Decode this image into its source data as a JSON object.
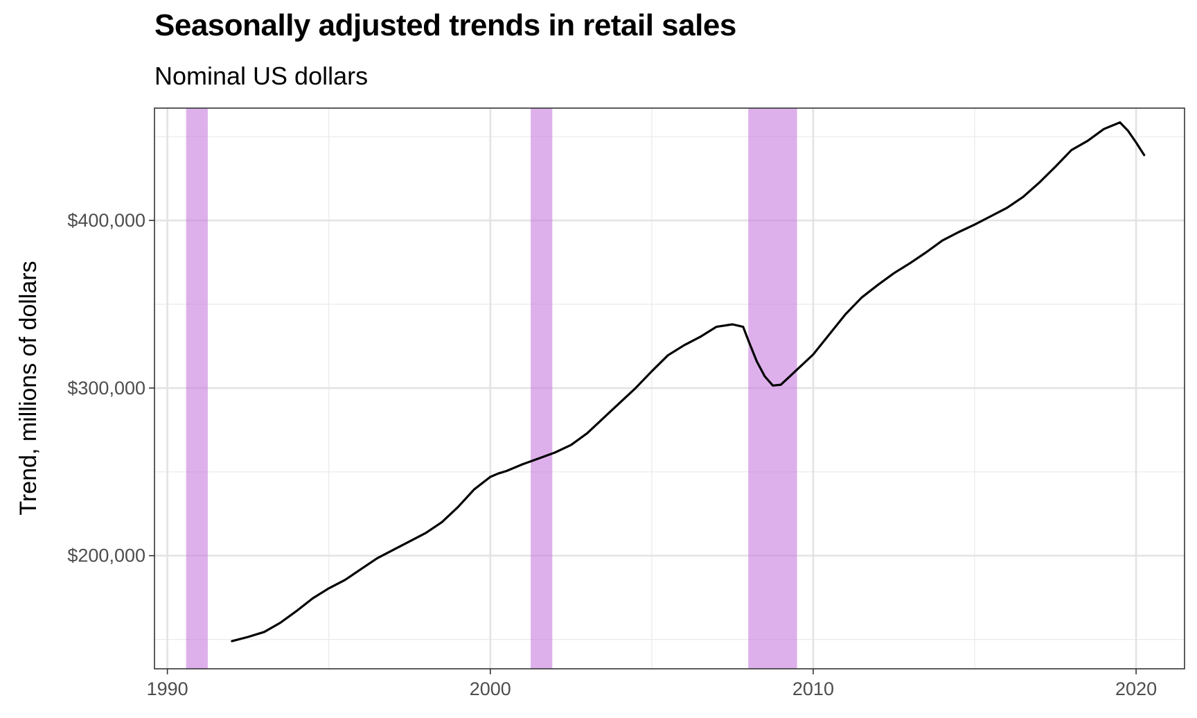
{
  "chart_data": {
    "type": "line",
    "title": "Seasonally adjusted trends in retail sales",
    "subtitle": "Nominal US dollars",
    "xlabel": "",
    "ylabel": "Trend, millions of dollars",
    "xlim": [
      1989.6,
      2021.5
    ],
    "ylim": [
      132500,
      467000
    ],
    "x_ticks": [
      1990,
      2000,
      2010,
      2020
    ],
    "x_tick_labels": [
      "1990",
      "2000",
      "2010",
      "2020"
    ],
    "x_minor_ticks": [
      1995,
      2005,
      2015
    ],
    "y_ticks": [
      200000,
      300000,
      400000
    ],
    "y_tick_labels": [
      "$200,000",
      "$300,000",
      "$400,000"
    ],
    "y_minor_ticks": [
      150000,
      250000,
      350000,
      450000
    ],
    "grid": true,
    "line_color": "#000000",
    "recession_color": "#c77cde",
    "recessions": [
      {
        "start": 1990.58,
        "end": 1991.25
      },
      {
        "start": 2001.25,
        "end": 2001.92
      },
      {
        "start": 2007.99,
        "end": 2009.5
      }
    ],
    "series": [
      {
        "x": [
          1992.0,
          1992.5,
          1993.0,
          1993.5,
          1994.0,
          1994.5,
          1995.0,
          1995.5,
          1996.0,
          1996.5,
          1997.0,
          1997.5,
          1998.0,
          1998.5,
          1999.0,
          1999.5,
          2000.0,
          2000.25,
          2000.5,
          2001.0,
          2001.5,
          2002.0,
          2002.5,
          2003.0,
          2003.5,
          2004.0,
          2004.5,
          2005.0,
          2005.5,
          2006.0,
          2006.5,
          2007.0,
          2007.5,
          2007.83,
          2008.0,
          2008.25,
          2008.5,
          2008.75,
          2009.0,
          2009.25,
          2009.5,
          2010.0,
          2010.5,
          2011.0,
          2011.5,
          2012.0,
          2012.5,
          2013.0,
          2013.5,
          2014.0,
          2014.5,
          2015.0,
          2015.5,
          2016.0,
          2016.5,
          2017.0,
          2017.5,
          2018.0,
          2018.5,
          2019.0,
          2019.5,
          2019.75,
          2020.0,
          2020.25
        ],
        "values": [
          149000,
          151500,
          154500,
          160000,
          167000,
          174500,
          180500,
          185500,
          192000,
          198500,
          203500,
          208500,
          213500,
          220000,
          229000,
          239500,
          247000,
          249000,
          250500,
          254500,
          258000,
          261500,
          266000,
          273000,
          282000,
          291000,
          300000,
          310000,
          319500,
          325500,
          330500,
          336500,
          338000,
          336500,
          328000,
          316000,
          307000,
          301500,
          302000,
          306500,
          311000,
          320000,
          332000,
          344000,
          354000,
          361500,
          368500,
          374500,
          381000,
          388000,
          393000,
          397500,
          402500,
          407500,
          414000,
          422500,
          432000,
          442000,
          447500,
          454500,
          458500,
          453500,
          446500,
          439000
        ]
      }
    ]
  }
}
